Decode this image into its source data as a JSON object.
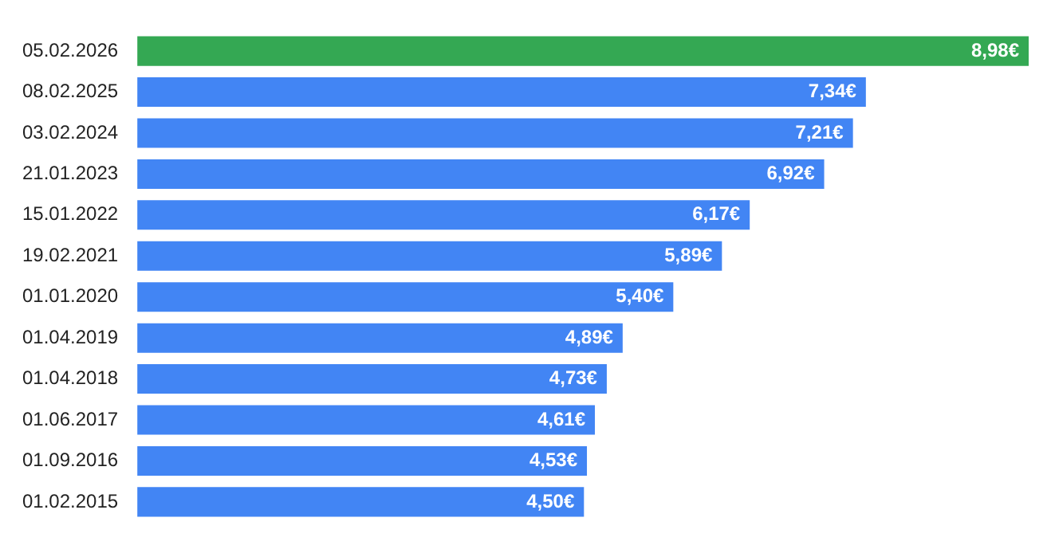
{
  "chart_data": {
    "type": "bar",
    "orientation": "horizontal",
    "categories": [
      "05.02.2026",
      "08.02.2025",
      "03.02.2024",
      "21.01.2023",
      "15.01.2022",
      "19.02.2021",
      "01.01.2020",
      "01.04.2019",
      "01.04.2018",
      "01.06.2017",
      "01.09.2016",
      "01.02.2015"
    ],
    "values": [
      8.98,
      7.34,
      7.21,
      6.92,
      6.17,
      5.89,
      5.4,
      4.89,
      4.73,
      4.61,
      4.53,
      4.5
    ],
    "colors": [
      "#34a853",
      "#4285f4",
      "#4285f4",
      "#4285f4",
      "#4285f4",
      "#4285f4",
      "#4285f4",
      "#4285f4",
      "#4285f4",
      "#4285f4",
      "#4285f4",
      "#4285f4"
    ],
    "value_labels": [
      "8,98€",
      "7,34€",
      "7,21€",
      "6,92€",
      "6,17€",
      "5,89€",
      "5,40€",
      "4,89€",
      "4,73€",
      "4,61€",
      "4,53€",
      "4,50€"
    ],
    "grid": false,
    "legend": false,
    "tick_labels": "y"
  }
}
